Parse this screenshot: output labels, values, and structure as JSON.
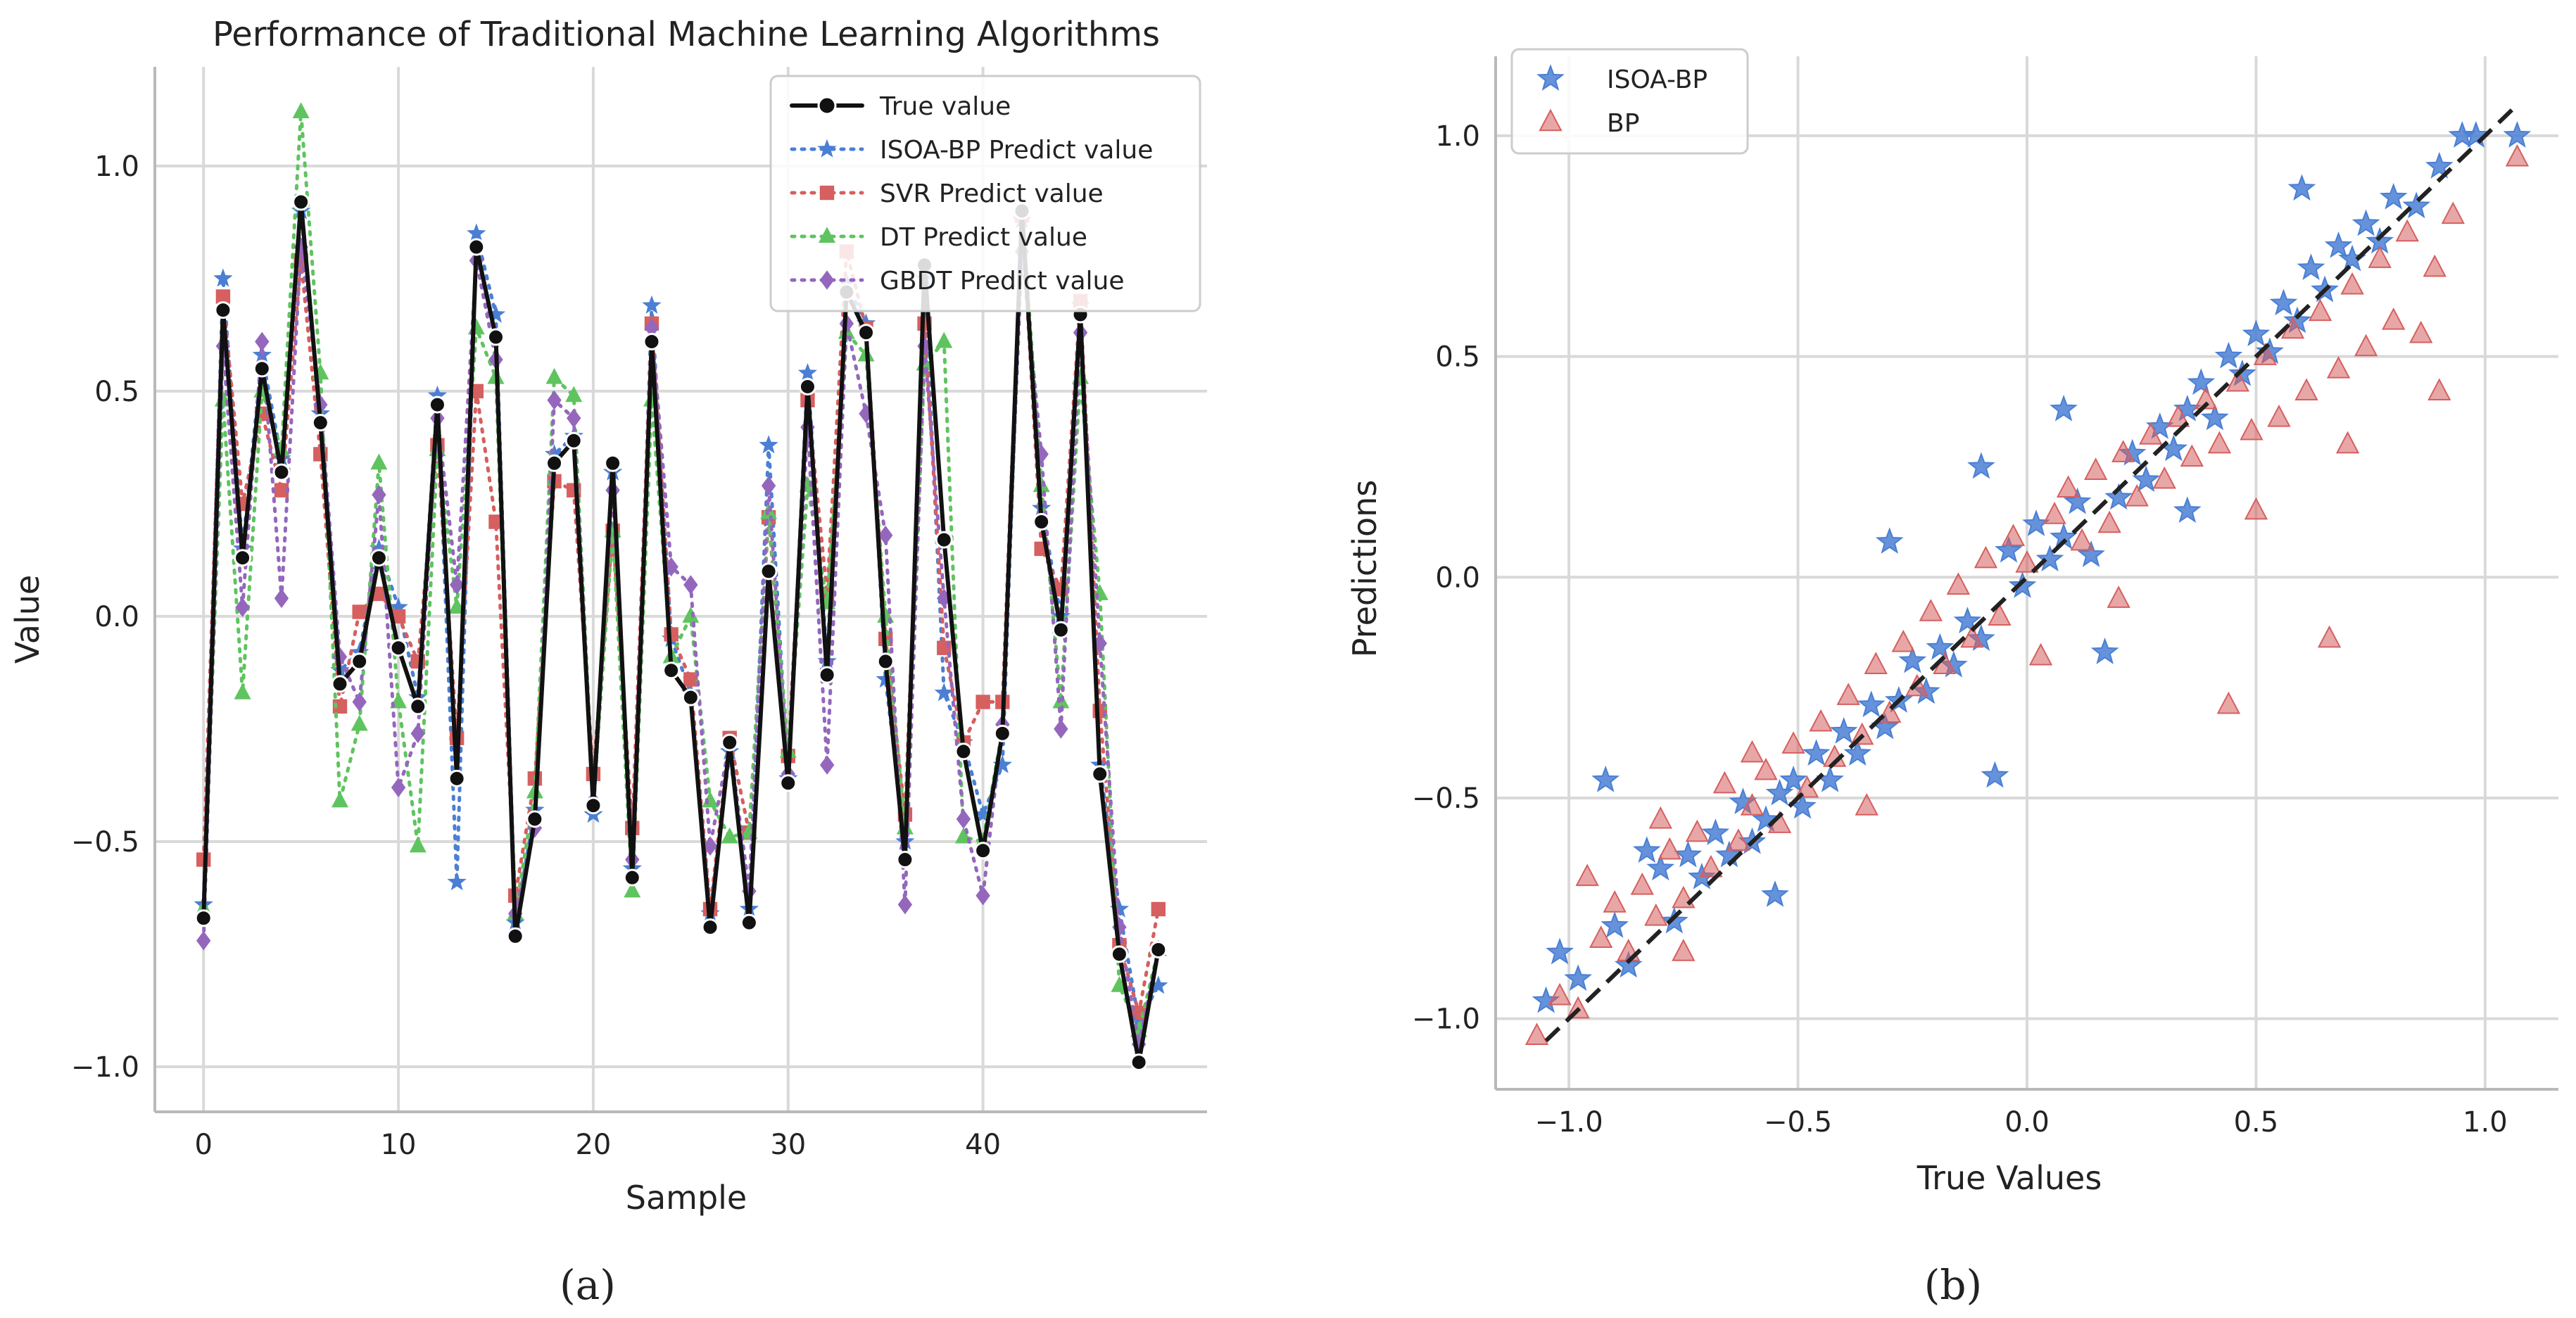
{
  "chart_data": [
    {
      "type": "line",
      "panel_label": "(a)",
      "title": "Performance of Traditional Machine Learning Algorithms",
      "xlabel": "Sample",
      "ylabel": "Value",
      "xlim": [
        -2.5,
        51.5
      ],
      "ylim": [
        -1.1,
        1.22
      ],
      "xticks": [
        0,
        10,
        20,
        30,
        40
      ],
      "xtick_labels": [
        "0",
        "10",
        "20",
        "30",
        "40"
      ],
      "yticks": [
        -1.0,
        -0.5,
        0.0,
        0.5,
        1.0
      ],
      "ytick_labels": [
        "−1.0",
        "−0.5",
        "0.0",
        "0.5",
        "1.0"
      ],
      "grid": true,
      "legend_position": "top-right",
      "x": [
        0,
        1,
        2,
        3,
        4,
        5,
        6,
        7,
        8,
        9,
        10,
        11,
        12,
        13,
        14,
        15,
        16,
        17,
        18,
        19,
        20,
        21,
        22,
        23,
        24,
        25,
        26,
        27,
        28,
        29,
        30,
        31,
        32,
        33,
        34,
        35,
        36,
        37,
        38,
        39,
        40,
        41,
        42,
        43,
        44,
        45,
        46,
        47,
        48,
        49
      ],
      "series": [
        {
          "name": "True value",
          "color": "#111111",
          "linestyle": "solid",
          "marker": "circle",
          "values": [
            -0.67,
            0.68,
            0.13,
            0.55,
            0.32,
            0.92,
            0.43,
            -0.15,
            -0.1,
            0.13,
            -0.07,
            -0.2,
            0.47,
            -0.36,
            0.82,
            0.62,
            -0.71,
            -0.45,
            0.34,
            0.39,
            -0.42,
            0.34,
            -0.58,
            0.61,
            -0.12,
            -0.18,
            -0.69,
            -0.28,
            -0.68,
            0.1,
            -0.37,
            0.51,
            -0.13,
            0.72,
            0.63,
            -0.1,
            -0.54,
            0.78,
            0.17,
            -0.3,
            -0.52,
            -0.26,
            0.9,
            0.21,
            -0.03,
            0.67,
            -0.35,
            -0.75,
            -0.99,
            -0.74
          ]
        },
        {
          "name": "ISOA-BP Predict value",
          "color": "#4a7fd4",
          "linestyle": "dotted",
          "marker": "star",
          "values": [
            -0.64,
            0.75,
            0.15,
            0.58,
            0.35,
            0.9,
            0.45,
            -0.12,
            -0.08,
            0.15,
            0.02,
            -0.18,
            0.49,
            -0.59,
            0.85,
            0.67,
            -0.68,
            -0.43,
            0.36,
            0.4,
            -0.44,
            0.32,
            -0.56,
            0.69,
            -0.05,
            -0.17,
            -0.66,
            -0.3,
            -0.65,
            0.38,
            -0.36,
            0.54,
            -0.1,
            0.74,
            0.65,
            -0.14,
            -0.5,
            0.75,
            -0.17,
            -0.28,
            -0.44,
            -0.33,
            0.88,
            0.24,
            0.0,
            0.69,
            -0.33,
            -0.65,
            -0.9,
            -0.82
          ]
        },
        {
          "name": "SVR Predict value",
          "color": "#d65f5f",
          "linestyle": "dotted",
          "marker": "square",
          "values": [
            -0.54,
            0.71,
            0.25,
            0.45,
            0.28,
            0.79,
            0.36,
            -0.2,
            0.01,
            0.05,
            0.0,
            -0.1,
            0.38,
            -0.27,
            0.5,
            0.21,
            -0.62,
            -0.36,
            0.3,
            0.28,
            -0.35,
            0.19,
            -0.47,
            0.65,
            -0.04,
            -0.14,
            -0.65,
            -0.27,
            -0.48,
            0.22,
            -0.31,
            0.48,
            0.05,
            0.81,
            0.64,
            -0.05,
            -0.44,
            0.65,
            -0.07,
            -0.28,
            -0.19,
            -0.19,
            0.89,
            0.15,
            0.06,
            0.7,
            -0.21,
            -0.73,
            -0.88,
            -0.65
          ]
        },
        {
          "name": "DT Predict value",
          "color": "#5fc45f",
          "linestyle": "dotted",
          "marker": "triangle",
          "values": [
            -0.65,
            0.48,
            -0.17,
            0.5,
            0.37,
            1.12,
            0.54,
            -0.41,
            -0.24,
            0.34,
            -0.19,
            -0.51,
            0.37,
            0.02,
            0.64,
            0.53,
            -0.66,
            -0.39,
            0.53,
            0.49,
            -0.41,
            0.19,
            -0.61,
            0.48,
            -0.09,
            0.0,
            -0.41,
            -0.49,
            -0.48,
            0.23,
            -0.3,
            0.29,
            0.03,
            0.63,
            0.58,
            0.0,
            -0.47,
            0.56,
            0.61,
            -0.49,
            -0.5,
            -0.25,
            0.91,
            0.29,
            -0.19,
            0.53,
            0.05,
            -0.82,
            -0.92,
            -0.74
          ]
        },
        {
          "name": "GBDT Predict value",
          "color": "#9467bd",
          "linestyle": "dotted",
          "marker": "diamond",
          "values": [
            -0.72,
            0.6,
            0.02,
            0.61,
            0.04,
            0.82,
            0.47,
            -0.09,
            -0.19,
            0.27,
            -0.38,
            -0.26,
            0.44,
            0.07,
            0.79,
            0.57,
            -0.66,
            -0.47,
            0.48,
            0.44,
            -0.41,
            0.28,
            -0.54,
            0.64,
            0.11,
            0.07,
            -0.51,
            -0.28,
            -0.61,
            0.29,
            -0.35,
            0.42,
            -0.33,
            0.65,
            0.45,
            0.18,
            -0.64,
            0.6,
            0.04,
            -0.45,
            -0.62,
            -0.24,
            0.81,
            0.36,
            -0.25,
            0.63,
            -0.06,
            -0.69,
            -0.95,
            -0.74
          ]
        }
      ]
    },
    {
      "type": "scatter",
      "panel_label": "(b)",
      "xlabel": "True Values",
      "ylabel": "Predictions",
      "xlim": [
        -1.16,
        1.16
      ],
      "ylim": [
        -1.16,
        1.18
      ],
      "xticks": [
        -1.0,
        -0.5,
        0.0,
        0.5,
        1.0
      ],
      "xtick_labels": [
        "−1.0",
        "−0.5",
        "0.0",
        "0.5",
        "1.0"
      ],
      "yticks": [
        -1.0,
        -0.5,
        0.0,
        0.5,
        1.0
      ],
      "ytick_labels": [
        "−1.0",
        "−0.5",
        "0.0",
        "0.5",
        "1.0"
      ],
      "grid": true,
      "legend_position": "top-left",
      "reference_line": {
        "style": "dashed",
        "color": "#222222",
        "from": [
          -1.05,
          -1.05
        ],
        "to": [
          1.07,
          1.07
        ]
      },
      "series": [
        {
          "name": "ISOA-BP",
          "color": "#4a7fd4",
          "marker": "star",
          "points": [
            [
              -1.05,
              -0.96
            ],
            [
              -1.02,
              -0.85
            ],
            [
              -0.98,
              -0.91
            ],
            [
              -0.92,
              -0.46
            ],
            [
              -0.9,
              -0.79
            ],
            [
              -0.87,
              -0.88
            ],
            [
              -0.83,
              -0.62
            ],
            [
              -0.8,
              -0.66
            ],
            [
              -0.77,
              -0.78
            ],
            [
              -0.74,
              -0.63
            ],
            [
              -0.71,
              -0.68
            ],
            [
              -0.68,
              -0.58
            ],
            [
              -0.65,
              -0.63
            ],
            [
              -0.62,
              -0.51
            ],
            [
              -0.6,
              -0.6
            ],
            [
              -0.57,
              -0.55
            ],
            [
              -0.54,
              -0.49
            ],
            [
              -0.51,
              -0.46
            ],
            [
              -0.49,
              -0.52
            ],
            [
              -0.46,
              -0.4
            ],
            [
              -0.43,
              -0.46
            ],
            [
              -0.4,
              -0.35
            ],
            [
              -0.37,
              -0.4
            ],
            [
              -0.34,
              -0.29
            ],
            [
              -0.31,
              -0.34
            ],
            [
              -0.28,
              -0.28
            ],
            [
              -0.25,
              -0.19
            ],
            [
              -0.22,
              -0.26
            ],
            [
              -0.19,
              -0.16
            ],
            [
              -0.16,
              -0.2
            ],
            [
              -0.13,
              -0.1
            ],
            [
              -0.1,
              -0.14
            ],
            [
              -0.07,
              -0.45
            ],
            [
              -0.04,
              0.06
            ],
            [
              -0.01,
              -0.02
            ],
            [
              0.02,
              0.12
            ],
            [
              0.05,
              0.04
            ],
            [
              0.08,
              0.09
            ],
            [
              0.11,
              0.17
            ],
            [
              0.14,
              0.05
            ],
            [
              0.17,
              -0.17
            ],
            [
              0.2,
              0.18
            ],
            [
              0.23,
              0.28
            ],
            [
              0.26,
              0.22
            ],
            [
              0.29,
              0.34
            ],
            [
              0.32,
              0.29
            ],
            [
              0.35,
              0.38
            ],
            [
              0.38,
              0.44
            ],
            [
              0.41,
              0.36
            ],
            [
              0.44,
              0.5
            ],
            [
              0.47,
              0.46
            ],
            [
              0.5,
              0.55
            ],
            [
              0.53,
              0.51
            ],
            [
              0.56,
              0.62
            ],
            [
              0.59,
              0.58
            ],
            [
              0.62,
              0.7
            ],
            [
              0.65,
              0.65
            ],
            [
              0.68,
              0.75
            ],
            [
              0.71,
              0.72
            ],
            [
              0.74,
              0.8
            ],
            [
              0.77,
              0.76
            ],
            [
              0.8,
              0.86
            ],
            [
              0.85,
              0.84
            ],
            [
              0.9,
              0.93
            ],
            [
              0.95,
              1.0
            ],
            [
              0.98,
              1.0
            ],
            [
              1.07,
              1.0
            ],
            [
              -0.3,
              0.08
            ],
            [
              -0.1,
              0.25
            ],
            [
              0.08,
              0.38
            ],
            [
              -0.55,
              -0.72
            ],
            [
              0.35,
              0.15
            ],
            [
              0.6,
              0.88
            ]
          ]
        },
        {
          "name": "BP",
          "color": "#d65f5f",
          "marker": "triangle",
          "points": [
            [
              -1.07,
              -1.04
            ],
            [
              -1.02,
              -0.95
            ],
            [
              -0.98,
              -0.98
            ],
            [
              -0.96,
              -0.68
            ],
            [
              -0.93,
              -0.82
            ],
            [
              -0.9,
              -0.74
            ],
            [
              -0.87,
              -0.85
            ],
            [
              -0.84,
              -0.7
            ],
            [
              -0.81,
              -0.77
            ],
            [
              -0.78,
              -0.62
            ],
            [
              -0.75,
              -0.73
            ],
            [
              -0.72,
              -0.58
            ],
            [
              -0.69,
              -0.66
            ],
            [
              -0.66,
              -0.47
            ],
            [
              -0.63,
              -0.6
            ],
            [
              -0.6,
              -0.52
            ],
            [
              -0.57,
              -0.44
            ],
            [
              -0.54,
              -0.56
            ],
            [
              -0.51,
              -0.38
            ],
            [
              -0.48,
              -0.48
            ],
            [
              -0.45,
              -0.33
            ],
            [
              -0.42,
              -0.41
            ],
            [
              -0.39,
              -0.27
            ],
            [
              -0.36,
              -0.36
            ],
            [
              -0.33,
              -0.2
            ],
            [
              -0.3,
              -0.31
            ],
            [
              -0.27,
              -0.15
            ],
            [
              -0.24,
              -0.25
            ],
            [
              -0.21,
              -0.08
            ],
            [
              -0.18,
              -0.2
            ],
            [
              -0.15,
              -0.02
            ],
            [
              -0.12,
              -0.14
            ],
            [
              -0.09,
              0.04
            ],
            [
              -0.06,
              -0.09
            ],
            [
              -0.03,
              0.09
            ],
            [
              0.0,
              0.03
            ],
            [
              0.03,
              -0.18
            ],
            [
              0.06,
              0.14
            ],
            [
              0.09,
              0.2
            ],
            [
              0.12,
              0.08
            ],
            [
              0.15,
              0.24
            ],
            [
              0.18,
              0.12
            ],
            [
              0.21,
              0.28
            ],
            [
              0.24,
              0.18
            ],
            [
              0.27,
              0.32
            ],
            [
              0.3,
              0.22
            ],
            [
              0.33,
              0.36
            ],
            [
              0.36,
              0.27
            ],
            [
              0.39,
              0.4
            ],
            [
              0.42,
              0.3
            ],
            [
              0.44,
              -0.29
            ],
            [
              0.46,
              0.44
            ],
            [
              0.49,
              0.33
            ],
            [
              0.52,
              0.5
            ],
            [
              0.55,
              0.36
            ],
            [
              0.58,
              0.56
            ],
            [
              0.61,
              0.42
            ],
            [
              0.64,
              0.6
            ],
            [
              0.66,
              -0.14
            ],
            [
              0.68,
              0.47
            ],
            [
              0.71,
              0.66
            ],
            [
              0.74,
              0.52
            ],
            [
              0.77,
              0.72
            ],
            [
              0.8,
              0.58
            ],
            [
              0.83,
              0.78
            ],
            [
              0.86,
              0.55
            ],
            [
              0.89,
              0.7
            ],
            [
              0.93,
              0.82
            ],
            [
              0.9,
              0.42
            ],
            [
              1.07,
              0.95
            ],
            [
              -0.75,
              -0.85
            ],
            [
              -0.6,
              -0.4
            ],
            [
              -0.35,
              -0.52
            ],
            [
              0.2,
              -0.05
            ],
            [
              0.5,
              0.15
            ],
            [
              0.7,
              0.3
            ],
            [
              -0.8,
              -0.55
            ]
          ]
        }
      ]
    }
  ]
}
